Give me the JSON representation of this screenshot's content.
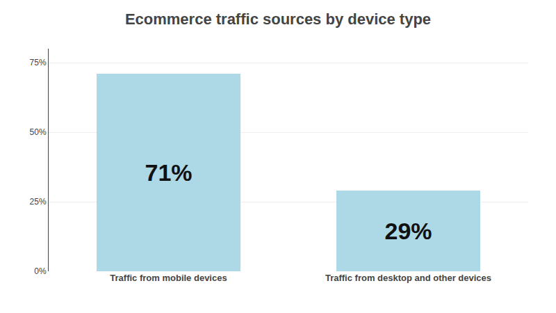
{
  "chart_data": {
    "type": "bar",
    "title": "Ecommerce traffic sources by device type",
    "categories": [
      "Traffic from mobile devices",
      "Traffic from desktop and other devices"
    ],
    "values": [
      71,
      29
    ],
    "value_labels": [
      "71%",
      "29%"
    ],
    "data_labels": true,
    "color": "#add8e6",
    "ylim": [
      0,
      80
    ],
    "yticks": [
      {
        "value": 0,
        "label": "0%"
      },
      {
        "value": 25,
        "label": "25%"
      },
      {
        "value": 50,
        "label": "50%"
      },
      {
        "value": 75,
        "label": "75%"
      }
    ],
    "grid": true
  }
}
